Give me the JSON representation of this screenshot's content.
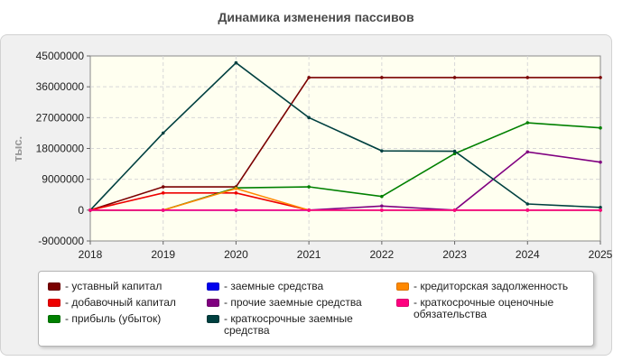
{
  "chart_data": {
    "type": "line",
    "title": "Динамика изменения пассивов",
    "ylabel": "тыс.",
    "xlabel": "",
    "categories": [
      "2018",
      "2019",
      "2020",
      "2021",
      "2022",
      "2023",
      "2024",
      "2025"
    ],
    "ylim": [
      -9000000,
      45000000
    ],
    "yticks": [
      "45000000",
      "36000000",
      "27000000",
      "18000000",
      "9000000",
      "0",
      "-9000000"
    ],
    "ytick_values": [
      45000000,
      36000000,
      27000000,
      18000000,
      9000000,
      0,
      -9000000
    ],
    "grid": true,
    "legend_position": "bottom",
    "series": [
      {
        "name": "- уставный капитал",
        "color": "#7a0000",
        "values": [
          0,
          6800000,
          6800000,
          38700000,
          38700000,
          38700000,
          38700000,
          38700000
        ]
      },
      {
        "name": "- добавочный капитал",
        "color": "#ee0000",
        "values": [
          0,
          5000000,
          5000000,
          0,
          0,
          0,
          0,
          0
        ]
      },
      {
        "name": "- прибыль (убыток)",
        "color": "#008000",
        "values": [
          0,
          0,
          6500000,
          6800000,
          4000000,
          16500000,
          25500000,
          24000000
        ]
      },
      {
        "name": "- заемные средства",
        "color": "#0000ee",
        "values": [
          0,
          0,
          0,
          0,
          0,
          0,
          0,
          0
        ]
      },
      {
        "name": "- прочие заемные средства",
        "color": "#800080",
        "values": [
          0,
          0,
          0,
          0,
          1200000,
          0,
          17000000,
          14000000
        ]
      },
      {
        "name": "- краткосрочные заемные средства",
        "color": "#004040",
        "values": [
          0,
          22500000,
          43000000,
          27000000,
          17300000,
          17200000,
          1800000,
          800000
        ]
      },
      {
        "name": "- кредиторская задолженность",
        "color": "#ff8800",
        "values": [
          0,
          0,
          6300000,
          0,
          0,
          0,
          0,
          0
        ]
      },
      {
        "name": "- краткосрочные оценочные обязательства",
        "color": "#ff0080",
        "values": [
          0,
          0,
          0,
          0,
          0,
          0,
          0,
          0
        ]
      }
    ]
  }
}
